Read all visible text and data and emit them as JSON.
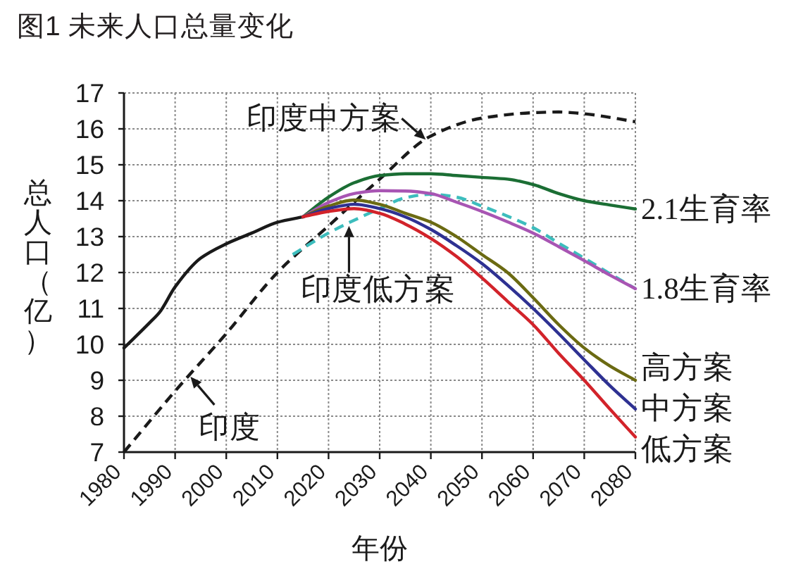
{
  "chart_data": {
    "type": "line",
    "title": "图1 未来人口总量变化",
    "xlabel": "年份",
    "ylabel": "总人口（亿）",
    "xlim": [
      1980,
      2080
    ],
    "ylim": [
      7,
      17
    ],
    "xticks": [
      1980,
      1990,
      2000,
      2010,
      2020,
      2030,
      2040,
      2050,
      2060,
      2070,
      2080
    ],
    "yticks": [
      7,
      8,
      9,
      10,
      11,
      12,
      13,
      14,
      15,
      16,
      17
    ],
    "grid": true,
    "series": [
      {
        "color": "#1a1a1a",
        "x": [
          1980,
          1985,
          1987,
          1990,
          1995,
          2000,
          2005,
          2010,
          2015
        ],
        "values": [
          9.9,
          10.6,
          10.9,
          11.6,
          12.4,
          12.8,
          13.1,
          13.4,
          13.55
        ]
      },
      {
        "color": "#1a1a1a",
        "line_style": "dashed",
        "x": [
          1980,
          1990,
          2000,
          2010,
          2020,
          2030,
          2040,
          2050,
          2060,
          2065,
          2070,
          2080
        ],
        "values": [
          7.0,
          8.7,
          10.3,
          12.0,
          13.3,
          14.6,
          15.8,
          16.3,
          16.45,
          16.47,
          16.42,
          16.2
        ]
      },
      {
        "color": "#3dbdbd",
        "line_style": "dashed",
        "x": [
          2013,
          2020,
          2030,
          2035,
          2040,
          2045,
          2050,
          2055,
          2060,
          2065,
          2070,
          2075,
          2080
        ],
        "values": [
          12.5,
          13.1,
          13.78,
          14.08,
          14.18,
          14.1,
          13.85,
          13.57,
          13.25,
          12.82,
          12.4,
          11.97,
          11.55
        ]
      },
      {
        "name": "2.1生育率",
        "color": "#1b6e34",
        "x": [
          2015,
          2020,
          2025,
          2030,
          2035,
          2040,
          2045,
          2050,
          2055,
          2060,
          2065,
          2070,
          2075,
          2080
        ],
        "values": [
          13.55,
          14.1,
          14.5,
          14.7,
          14.75,
          14.75,
          14.7,
          14.65,
          14.6,
          14.45,
          14.2,
          14.0,
          13.88,
          13.77
        ]
      },
      {
        "name": "1.8生育率",
        "color": "#a855b3",
        "x": [
          2015,
          2020,
          2025,
          2030,
          2035,
          2040,
          2045,
          2050,
          2055,
          2060,
          2065,
          2070,
          2075,
          2080
        ],
        "values": [
          13.55,
          13.95,
          14.2,
          14.28,
          14.27,
          14.2,
          13.96,
          13.7,
          13.41,
          13.1,
          12.72,
          12.33,
          11.93,
          11.55
        ]
      },
      {
        "name": "高方案",
        "color": "#6b6a12",
        "x": [
          2015,
          2020,
          2025,
          2030,
          2035,
          2040,
          2045,
          2050,
          2055,
          2060,
          2065,
          2070,
          2075,
          2080
        ],
        "values": [
          13.55,
          13.85,
          14.02,
          13.9,
          13.65,
          13.4,
          13.0,
          12.5,
          12.0,
          11.3,
          10.55,
          9.9,
          9.4,
          9.0
        ]
      },
      {
        "name": "中方案",
        "color": "#2e3192",
        "x": [
          2015,
          2020,
          2025,
          2030,
          2035,
          2040,
          2045,
          2050,
          2055,
          2060,
          2065,
          2070,
          2075,
          2080
        ],
        "values": [
          13.55,
          13.78,
          13.9,
          13.78,
          13.55,
          13.2,
          12.75,
          12.25,
          11.65,
          11.0,
          10.3,
          9.57,
          8.85,
          8.2
        ]
      },
      {
        "name": "低方案",
        "color": "#d2232a",
        "x": [
          2015,
          2020,
          2025,
          2030,
          2035,
          2040,
          2045,
          2050,
          2055,
          2060,
          2065,
          2070,
          2075,
          2080
        ],
        "values": [
          13.55,
          13.7,
          13.78,
          13.65,
          13.35,
          12.95,
          12.45,
          11.85,
          11.2,
          10.55,
          9.75,
          9.0,
          8.2,
          7.42
        ]
      }
    ],
    "annotations": [
      {
        "text": "印度中方案",
        "x": 2039,
        "y": 15.7
      },
      {
        "text": "印度低方案",
        "x": 2024,
        "y": 13.3
      },
      {
        "text": "印度",
        "x": 1993,
        "y": 9.1
      }
    ]
  }
}
